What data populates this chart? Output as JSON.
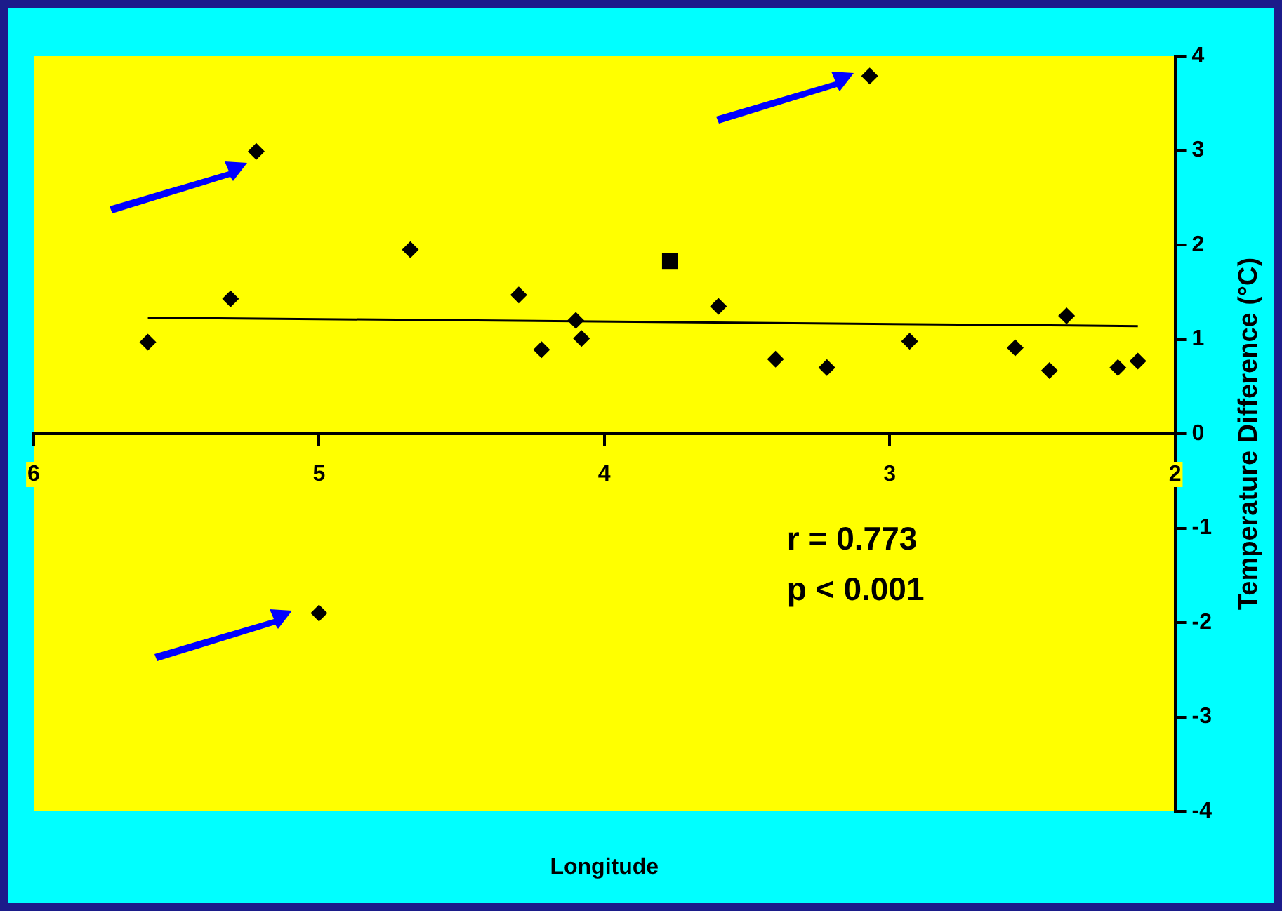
{
  "chart_data": {
    "type": "scatter",
    "xlabel": "Longitude",
    "ylabel": "Temperature Difference (°C)",
    "annotations": [
      "r = 0.773",
      "p < 0.001"
    ],
    "xlim": [
      6,
      2
    ],
    "xticks": [
      6,
      5,
      4,
      3,
      2
    ],
    "ylim": [
      -4,
      4
    ],
    "yticks": [
      -4,
      -3,
      -2,
      -1,
      0,
      1,
      2,
      3,
      4
    ],
    "grid": false,
    "legend": false,
    "marker": "diamond",
    "series": [
      {
        "color": "#000000",
        "x": [
          5.6,
          5.31,
          5.22,
          5.0,
          4.68,
          4.3,
          4.22,
          4.1,
          4.08,
          3.6,
          3.4,
          3.22,
          3.07,
          2.93,
          2.56,
          2.44,
          2.38,
          2.2,
          2.13
        ],
        "values": [
          0.97,
          1.43,
          2.99,
          -1.9,
          1.95,
          1.47,
          0.89,
          1.2,
          1.01,
          1.35,
          0.79,
          0.7,
          3.79,
          0.98,
          0.91,
          0.67,
          1.25,
          0.7,
          0.77
        ]
      },
      {
        "color": "#000000",
        "marker": "square",
        "x": [
          3.77
        ],
        "values": [
          1.83
        ]
      },
      {
        "type": "line",
        "color": "#000000",
        "marker": "none",
        "line_style": "solid",
        "x": [
          5.6,
          2.13
        ],
        "values": [
          1.23,
          1.14
        ]
      }
    ]
  }
}
